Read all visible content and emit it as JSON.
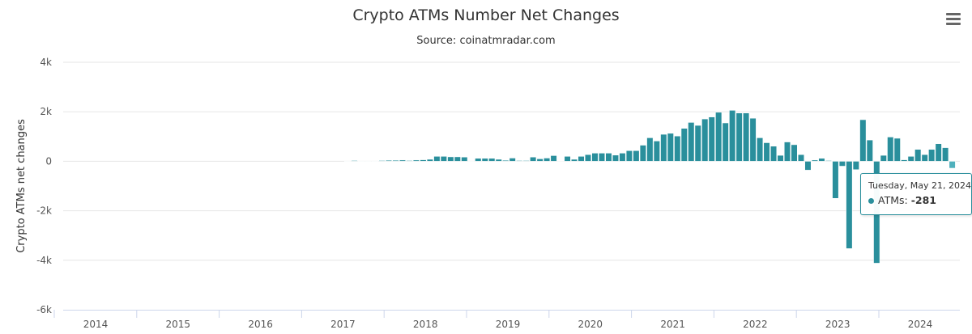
{
  "chart_data": {
    "type": "bar",
    "title": "Crypto ATMs Number Net Changes",
    "subtitle": "Source: coinatmradar.com",
    "ylabel": "Crypto ATMs net changes",
    "xlabel": "",
    "ylim": [
      -6000,
      4000
    ],
    "yticks": [
      "4k",
      "2k",
      "0",
      "-2k",
      "-4k",
      "-6k"
    ],
    "ytick_values": [
      4000,
      2000,
      0,
      -2000,
      -4000,
      -6000
    ],
    "xticks": [
      "2014",
      "2015",
      "2016",
      "2017",
      "2018",
      "2019",
      "2020",
      "2021",
      "2022",
      "2023",
      "2024"
    ],
    "grid": true,
    "color": "#2a8f9c",
    "series": [
      {
        "name": "ATMs",
        "x": [
          "2017-01",
          "2017-02",
          "2017-03",
          "2017-04",
          "2017-05",
          "2017-06",
          "2017-07",
          "2017-08",
          "2017-09",
          "2017-10",
          "2017-11",
          "2017-12",
          "2018-01",
          "2018-02",
          "2018-03",
          "2018-04",
          "2018-05",
          "2018-06",
          "2018-07",
          "2018-08",
          "2018-09",
          "2018-10",
          "2018-11",
          "2018-12",
          "2019-01",
          "2019-02",
          "2019-03",
          "2019-04",
          "2019-05",
          "2019-06",
          "2019-07",
          "2019-08",
          "2019-09",
          "2019-10",
          "2019-11",
          "2019-12",
          "2020-01",
          "2020-02",
          "2020-03",
          "2020-04",
          "2020-05",
          "2020-06",
          "2020-07",
          "2020-08",
          "2020-09",
          "2020-10",
          "2020-11",
          "2020-12",
          "2021-01",
          "2021-02",
          "2021-03",
          "2021-04",
          "2021-05",
          "2021-06",
          "2021-07",
          "2021-08",
          "2021-09",
          "2021-10",
          "2021-11",
          "2021-12",
          "2022-01",
          "2022-02",
          "2022-03",
          "2022-04",
          "2022-05",
          "2022-06",
          "2022-07",
          "2022-08",
          "2022-09",
          "2022-10",
          "2022-11",
          "2022-12",
          "2023-01",
          "2023-02",
          "2023-03",
          "2023-04",
          "2023-05",
          "2023-06",
          "2023-07",
          "2023-08",
          "2023-09",
          "2023-10",
          "2023-11",
          "2023-12",
          "2024-01",
          "2024-02",
          "2024-03",
          "2024-04",
          "2024-05"
        ],
        "values": [
          0,
          30,
          0,
          0,
          0,
          30,
          40,
          40,
          50,
          30,
          50,
          60,
          80,
          200,
          200,
          180,
          180,
          170,
          0,
          120,
          120,
          120,
          80,
          40,
          130,
          30,
          30,
          170,
          100,
          130,
          230,
          20,
          200,
          80,
          200,
          270,
          330,
          330,
          330,
          250,
          330,
          430,
          430,
          650,
          950,
          820,
          1090,
          1130,
          1020,
          1330,
          1570,
          1450,
          1710,
          1790,
          1980,
          1550,
          2060,
          1950,
          1950,
          1740,
          950,
          750,
          610,
          240,
          780,
          670,
          270,
          -360,
          50,
          120,
          30,
          -1500,
          -200,
          -3530,
          -340,
          1680,
          860,
          -4120,
          240,
          980,
          930,
          60,
          200,
          480,
          270,
          480,
          710,
          550,
          -281
        ]
      }
    ]
  },
  "tooltip": {
    "date": "Tuesday, May 21, 2024",
    "series": "ATMs:",
    "value": "-281"
  },
  "menu_icon": "hamburger-icon"
}
